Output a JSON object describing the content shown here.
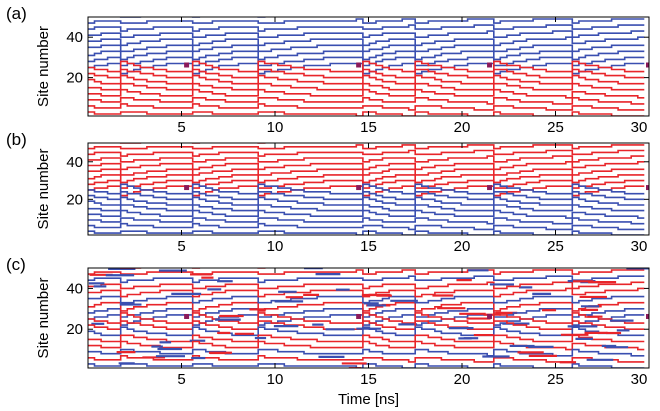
{
  "chart_data": [
    {
      "type": "line",
      "panel_label": "(a)",
      "ylabel": "Site number",
      "xlabel": "",
      "xlim": [
        0,
        30
      ],
      "ylim": [
        1,
        50
      ],
      "xticks": [
        5,
        10,
        15,
        20,
        25,
        30
      ],
      "yticks": [
        20,
        40
      ],
      "grid": false,
      "colors": {
        "upper": "#3a4fb0",
        "lower": "#e8252a"
      },
      "chevron_times": [
        1.5,
        5.3,
        8.8,
        14.5,
        17.3,
        21.5,
        25.6,
        30.0
      ],
      "mode": "clean"
    },
    {
      "type": "line",
      "panel_label": "(b)",
      "ylabel": "Site number",
      "xlabel": "",
      "xlim": [
        0,
        30
      ],
      "ylim": [
        1,
        50
      ],
      "xticks": [
        5,
        10,
        15,
        20,
        25,
        30
      ],
      "yticks": [
        20,
        40
      ],
      "grid": false,
      "colors": {
        "upper": "#e8252a",
        "lower": "#3a4fb0"
      },
      "chevron_times": [
        1.5,
        5.3,
        8.8,
        14.5,
        17.3,
        21.5,
        25.6,
        30.0
      ],
      "mode": "clean"
    },
    {
      "type": "line",
      "panel_label": "(c)",
      "ylabel": "Site number",
      "xlabel": "Time [ns]",
      "xlim": [
        0,
        30
      ],
      "ylim": [
        1,
        50
      ],
      "xticks": [
        5,
        10,
        15,
        20,
        25,
        30
      ],
      "yticks": [
        20,
        40
      ],
      "grid": false,
      "colors": {
        "upper": "#e8252a",
        "lower": "#3a4fb0"
      },
      "chevron_times": [
        1.5,
        5.3,
        8.8,
        14.5,
        17.3,
        21.5,
        25.6,
        30.0
      ],
      "mode": "mixed"
    }
  ]
}
